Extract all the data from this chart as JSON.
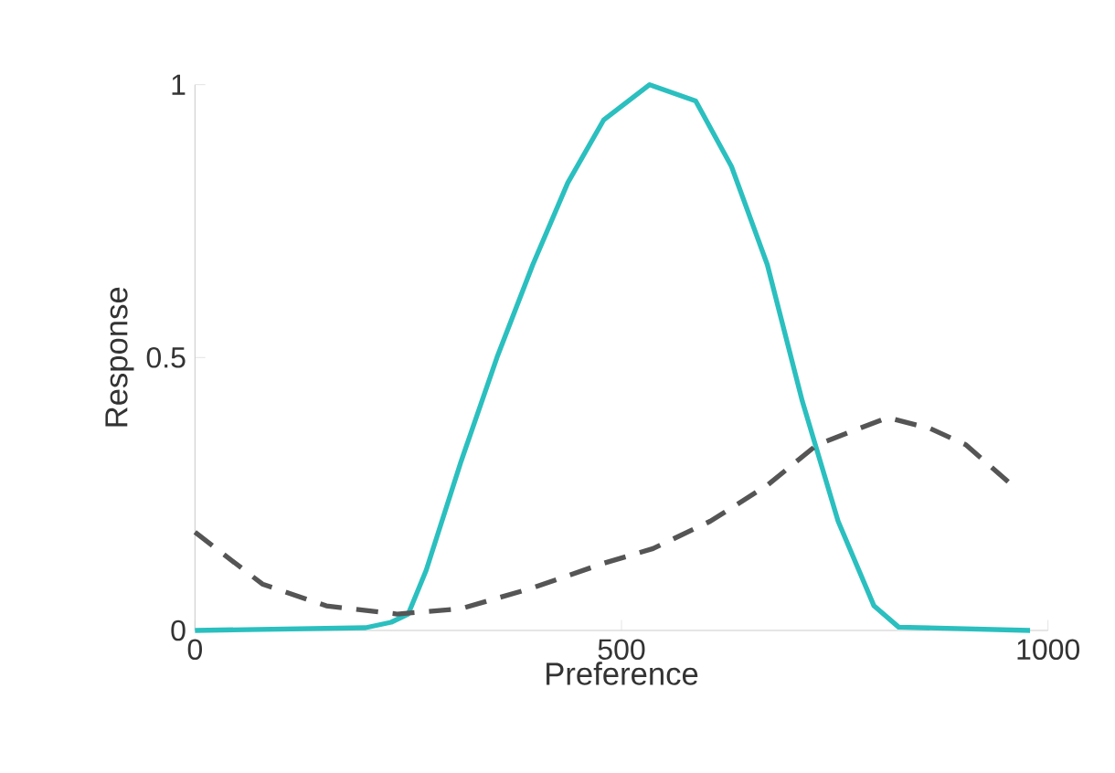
{
  "chart_data": {
    "type": "line",
    "xlabel": "Preference",
    "ylabel": "Response",
    "xlim": [
      0,
      1000
    ],
    "ylim": [
      0,
      1
    ],
    "xticks": [
      0,
      500,
      1000
    ],
    "yticks": [
      0,
      0.5,
      1
    ],
    "grid": false,
    "marker": "none",
    "series": [
      {
        "color": "#2bbfbf",
        "line_style": "solid",
        "x": [
          0,
          200,
          230,
          250,
          271,
          312,
          354,
          396,
          437,
          479,
          533,
          587,
          629,
          671,
          712,
          754,
          796,
          825,
          979
        ],
        "values": [
          0,
          0.005,
          0.015,
          0.03,
          0.11,
          0.31,
          0.5,
          0.67,
          0.82,
          0.935,
          1.0,
          0.97,
          0.85,
          0.67,
          0.42,
          0.2,
          0.045,
          0.006,
          0
        ]
      },
      {
        "color": "#555555",
        "line_style": "dashed",
        "x": [
          0,
          79,
          154,
          237,
          312,
          396,
          479,
          537,
          604,
          671,
          729,
          812,
          862,
          904,
          958
        ],
        "values": [
          0.18,
          0.085,
          0.045,
          0.03,
          0.04,
          0.078,
          0.123,
          0.15,
          0.2,
          0.266,
          0.34,
          0.39,
          0.37,
          0.34,
          0.266
        ]
      }
    ]
  }
}
